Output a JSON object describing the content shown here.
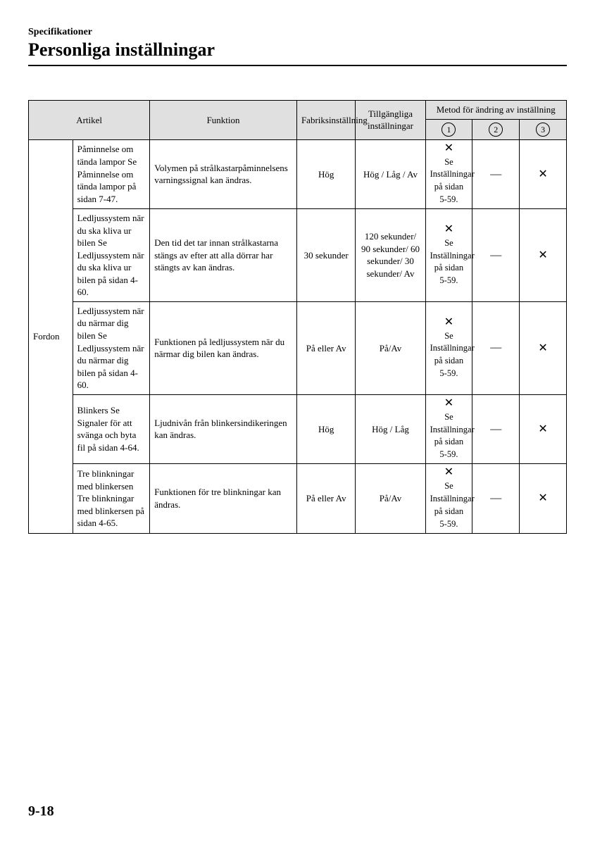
{
  "header": {
    "section_label": "Specifikationer",
    "title": "Personliga inställningar"
  },
  "table": {
    "headers": {
      "artikel": "Artikel",
      "funktion": "Funktion",
      "fabrik": "Fabriksinställning",
      "tillg": "Tillgängliga inställningar",
      "metod_group": "Metod för ändring av inställning",
      "m1": "1",
      "m2": "2",
      "m3": "3"
    },
    "group_label": "Fordon",
    "method1_text": "Se Inställningar på sidan 5-59.",
    "dash": "—",
    "x": "✕",
    "rows": [
      {
        "artikel": "Påminnelse om tända lampor\nSe Påminnelse om tända lampor på sidan 7-47.",
        "funktion": "Volymen på strålkastarpåminnelsens varningssignal kan ändras.",
        "fabrik": "Hög",
        "tillg": "Hög / Låg / Av"
      },
      {
        "artikel": "Ledljussystem när du ska kliva ur bilen\nSe Ledljussystem när du ska kliva ur bilen på sidan 4-60.",
        "funktion": "Den tid det tar innan strålkastarna stängs av efter att alla dörrar har stängts av kan ändras.",
        "fabrik": "30 sekunder",
        "tillg": "120 sekunder/ 90 sekunder/ 60 sekunder/ 30 sekunder/ Av"
      },
      {
        "artikel": "Ledljussystem när du närmar dig bilen\nSe Ledljussystem när du närmar dig bilen på sidan 4-60.",
        "funktion": "Funktionen på ledljussystem när du närmar dig bilen kan ändras.",
        "fabrik": "På eller Av",
        "tillg": "På/Av"
      },
      {
        "artikel": "Blinkers\nSe Signaler för att svänga och byta fil på sidan 4-64.",
        "funktion": "Ljudnivån från blinkersindikeringen kan ändras.",
        "fabrik": "Hög",
        "tillg": "Hög / Låg"
      },
      {
        "artikel": "Tre blinkningar med blinkersen\nTre blinkningar med blinkersen på sidan 4-65.",
        "funktion": "Funktionen för tre blinkningar kan ändras.",
        "fabrik": "På eller Av",
        "tillg": "På/Av"
      }
    ]
  },
  "page_number": "9-18",
  "style": {
    "background_color": "#ffffff",
    "header_bg": "#e0e0e0",
    "border_color": "#000000",
    "font_family": "Times New Roman",
    "title_fontsize_pt": 20,
    "section_label_fontsize_pt": 11,
    "cell_fontsize_pt": 10
  }
}
